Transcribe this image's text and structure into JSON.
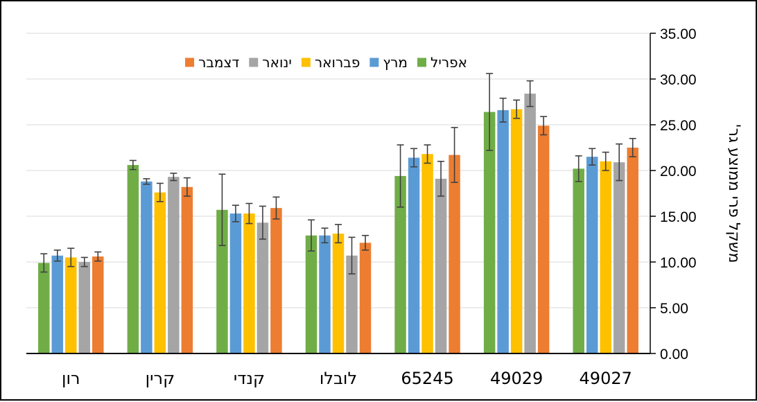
{
  "chart_data": {
    "type": "bar",
    "title": "",
    "ylabel": "משקל פרי ממוצע גר'",
    "ylim": [
      0,
      35
    ],
    "y_ticks": [
      "0.00",
      "5.00",
      "10.00",
      "15.00",
      "20.00",
      "25.00",
      "30.00",
      "35.00"
    ],
    "y_axis_side": "right",
    "category_order": "right-to-left",
    "grid": true,
    "legend_position": "top-left",
    "categories": [
      "49027",
      "49029",
      "65245",
      "לובלו",
      "קנדי",
      "קרין",
      "רון"
    ],
    "series": [
      {
        "name": "אפריל",
        "color": "#70AD47",
        "values": [
          20.2,
          26.4,
          19.4,
          12.9,
          15.7,
          20.6,
          9.9
        ],
        "errors": [
          1.4,
          4.2,
          3.4,
          1.7,
          3.9,
          0.5,
          1.0
        ]
      },
      {
        "name": "מרץ",
        "color": "#5B9BD5",
        "values": [
          21.5,
          26.6,
          21.4,
          12.9,
          15.3,
          18.8,
          10.7
        ],
        "errors": [
          0.9,
          1.3,
          1.0,
          0.8,
          0.9,
          0.3,
          0.6
        ]
      },
      {
        "name": "פברואר",
        "color": "#FFC000",
        "values": [
          21.0,
          26.7,
          21.8,
          13.1,
          15.3,
          17.6,
          10.5
        ],
        "errors": [
          1.0,
          1.0,
          1.0,
          1.0,
          1.1,
          1.0,
          1.0
        ]
      },
      {
        "name": "ינואר",
        "color": "#A5A5A5",
        "values": [
          20.9,
          28.4,
          19.1,
          10.7,
          14.3,
          19.3,
          10.0
        ],
        "errors": [
          2.0,
          1.4,
          1.9,
          2.0,
          1.8,
          0.4,
          0.5
        ]
      },
      {
        "name": "דצמבר",
        "color": "#ED7D31",
        "values": [
          22.5,
          24.9,
          21.7,
          12.1,
          15.9,
          18.2,
          10.6
        ],
        "errors": [
          1.0,
          1.0,
          3.0,
          0.8,
          1.2,
          1.0,
          0.5
        ]
      }
    ]
  }
}
